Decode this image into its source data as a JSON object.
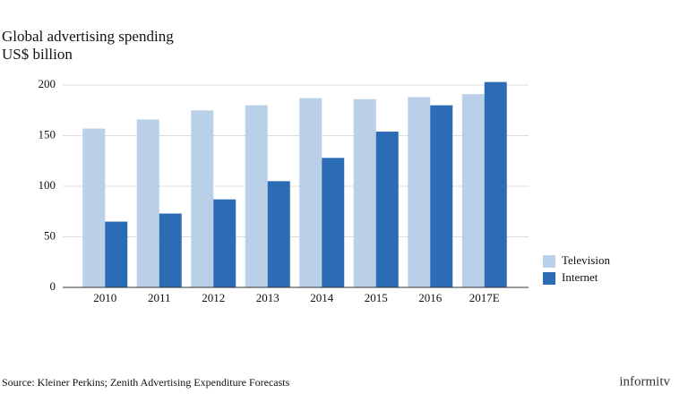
{
  "chart_data": {
    "type": "bar",
    "title": "Global advertising spending",
    "subtitle": "US$ billion",
    "categories": [
      "2010",
      "2011",
      "2012",
      "2013",
      "2014",
      "2015",
      "2016",
      "2017E"
    ],
    "series": [
      {
        "name": "Television",
        "color": "#b9d0e8",
        "values": [
          157,
          166,
          175,
          180,
          187,
          186,
          188,
          191
        ]
      },
      {
        "name": "Internet",
        "color": "#2b6cb4",
        "values": [
          65,
          73,
          87,
          105,
          128,
          154,
          180,
          203
        ]
      }
    ],
    "ylim": [
      0,
      200
    ],
    "yticks": [
      0,
      50,
      100,
      150,
      200
    ],
    "grid": true,
    "legend": "right",
    "source": "Source: Kleiner Perkins; Zenith Advertising Expenditure Forecasts",
    "brand": "informitv"
  }
}
